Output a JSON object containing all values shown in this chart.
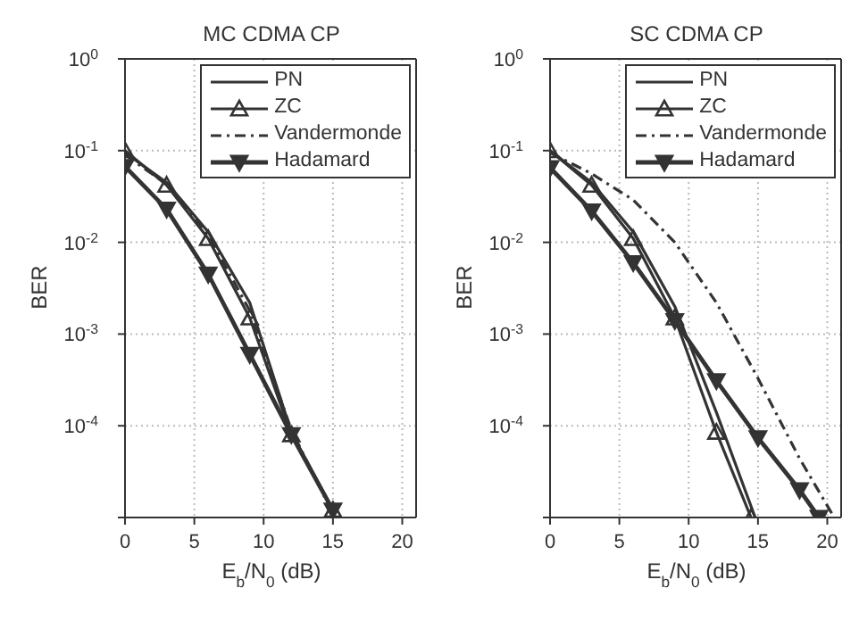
{
  "chart_data": [
    {
      "type": "line",
      "title": "MC CDMA CP",
      "xlabel": "E$_{b}$/N$_{0}$ (dB)",
      "ylabel": "BER",
      "log": "y",
      "grid": true,
      "legend": "top right",
      "xlim": [
        0,
        21
      ],
      "xticks": [
        0,
        5,
        10,
        15,
        20
      ],
      "ylim": [
        1e-05,
        1
      ],
      "yticks": [
        {
          "value": 1e-05,
          "label": null
        },
        {
          "value": 0.0001,
          "label": "10$^{-4}$"
        },
        {
          "value": 0.001,
          "label": "10$^{-3}$"
        },
        {
          "value": 0.01,
          "label": "10$^{-2}$"
        },
        {
          "value": 0.1,
          "label": "10$^{-1}$"
        },
        {
          "value": 1,
          "label": "10$^{0}$"
        }
      ],
      "series": [
        {
          "name": "PN",
          "color": "#333333",
          "marker": "none",
          "line_style": "solid",
          "x": [
            0,
            3,
            6,
            9,
            12,
            15
          ],
          "values": [
            0.095,
            0.045,
            0.013,
            0.0022,
            8.5e-05,
            1.2e-05
          ]
        },
        {
          "name": "ZC",
          "color": "#333333",
          "marker": "triangle",
          "line_style": "solid",
          "x": [
            0,
            3,
            6,
            9,
            12,
            15
          ],
          "values": [
            0.1,
            0.042,
            0.011,
            0.0015,
            8e-05,
            1.2e-05
          ]
        },
        {
          "name": "Vandermonde",
          "color": "#333333",
          "marker": "none",
          "line_style": "dashed",
          "x": [
            0,
            3,
            6,
            9,
            12,
            15
          ],
          "values": [
            0.09,
            0.043,
            0.012,
            0.0018,
            9e-05,
            1.1e-05
          ]
        },
        {
          "name": "Hadamard",
          "color": "#333333",
          "marker": "triangle-down",
          "line_style": "solid",
          "x": [
            0,
            3,
            6,
            9,
            12,
            15
          ],
          "values": [
            0.067,
            0.023,
            0.0045,
            0.0006,
            8e-05,
            1.2e-05
          ]
        }
      ]
    },
    {
      "type": "line",
      "title": "SC CDMA CP",
      "xlabel": "E$_{b}$/N$_{0}$ (dB)",
      "ylabel": "BER",
      "log": "y",
      "grid": true,
      "legend": "top right",
      "xlim": [
        0,
        21
      ],
      "xticks": [
        0,
        5,
        10,
        15,
        20
      ],
      "ylim": [
        1e-05,
        1
      ],
      "yticks": [
        {
          "value": 1e-05,
          "label": null
        },
        {
          "value": 0.0001,
          "label": "10$^{-4}$"
        },
        {
          "value": 0.001,
          "label": "10$^{-3}$"
        },
        {
          "value": 0.01,
          "label": "10$^{-2}$"
        },
        {
          "value": 0.1,
          "label": "10$^{-1}$"
        },
        {
          "value": 1,
          "label": "10$^{0}$"
        }
      ],
      "series": [
        {
          "name": "PN",
          "color": "#333333",
          "marker": "none",
          "line_style": "solid",
          "x": [
            0,
            3,
            6,
            9,
            12,
            14.8
          ],
          "values": [
            0.1,
            0.045,
            0.013,
            0.002,
            0.00014,
            1e-05
          ]
        },
        {
          "name": "ZC",
          "color": "#333333",
          "marker": "triangle",
          "line_style": "solid",
          "x": [
            0,
            3,
            6,
            9,
            12,
            14.5
          ],
          "values": [
            0.1,
            0.042,
            0.011,
            0.0015,
            8.5e-05,
            1e-05
          ]
        },
        {
          "name": "Vandermonde",
          "color": "#333333",
          "marker": "none",
          "line_style": "dashed",
          "x": [
            0,
            3,
            6,
            9,
            12,
            15,
            18,
            20.5
          ],
          "values": [
            0.095,
            0.056,
            0.029,
            0.01,
            0.0022,
            0.00033,
            4.4e-05,
            1e-05
          ]
        },
        {
          "name": "Hadamard",
          "color": "#333333",
          "marker": "triangle-down",
          "line_style": "solid",
          "x": [
            0,
            3,
            6,
            9,
            12,
            15,
            18,
            19.4
          ],
          "values": [
            0.065,
            0.022,
            0.006,
            0.0014,
            0.00031,
            7.4e-05,
            2e-05,
            1e-05
          ]
        }
      ]
    }
  ]
}
